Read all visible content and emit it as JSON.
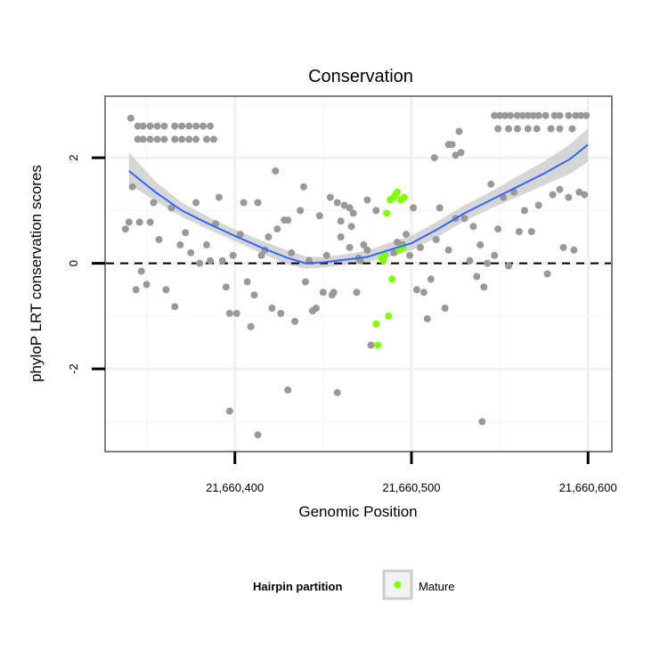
{
  "chart_data": {
    "type": "scatter",
    "title": "Conservation",
    "xlabel": "Genomic Position",
    "ylabel": "phyloP LRT conservation scores",
    "xlim": [
      21660327,
      21660613
    ],
    "ylim": [
      -3.55,
      3.15
    ],
    "x_ticks": [
      21660400,
      21660500,
      21660600
    ],
    "x_tick_labels": [
      "21,660,400",
      "21,660,500",
      "21,660,600"
    ],
    "y_ticks": [
      -2,
      0,
      2
    ],
    "y_tick_labels": [
      "-2",
      "0",
      "2"
    ],
    "grid": true,
    "reference_line": {
      "y": 0,
      "style": "dashed"
    },
    "legend": {
      "title": "Hairpin partition",
      "entries": [
        "Mature"
      ],
      "position": "bottom"
    },
    "colors": {
      "background_points": "#999999",
      "mature": "#7fff00",
      "smooth_line": "#3366ff",
      "confidence_band": "#c8c8c8"
    },
    "series": [
      {
        "role": "other",
        "points": [
          [
            21660341,
            2.75
          ],
          [
            21660345,
            2.6
          ],
          [
            21660348,
            2.6
          ],
          [
            21660352,
            2.6
          ],
          [
            21660356,
            2.6
          ],
          [
            21660360,
            2.6
          ],
          [
            21660366,
            2.6
          ],
          [
            21660370,
            2.6
          ],
          [
            21660374,
            2.6
          ],
          [
            21660378,
            2.6
          ],
          [
            21660382,
            2.6
          ],
          [
            21660386,
            2.6
          ],
          [
            21660345,
            2.35
          ],
          [
            21660348,
            2.35
          ],
          [
            21660352,
            2.35
          ],
          [
            21660356,
            2.35
          ],
          [
            21660360,
            2.35
          ],
          [
            21660366,
            2.35
          ],
          [
            21660370,
            2.35
          ],
          [
            21660374,
            2.35
          ],
          [
            21660378,
            2.35
          ],
          [
            21660384,
            2.35
          ],
          [
            21660388,
            2.35
          ],
          [
            21660342,
            1.45
          ],
          [
            21660338,
            0.65
          ],
          [
            21660340,
            0.78
          ],
          [
            21660346,
            0.78
          ],
          [
            21660350,
            -0.4
          ],
          [
            21660344,
            -0.5
          ],
          [
            21660347,
            -0.15
          ],
          [
            21660352,
            0.78
          ],
          [
            21660354,
            1.15
          ],
          [
            21660357,
            0.45
          ],
          [
            21660361,
            -0.5
          ],
          [
            21660364,
            1.05
          ],
          [
            21660366,
            -0.82
          ],
          [
            21660369,
            0.35
          ],
          [
            21660372,
            0.58
          ],
          [
            21660375,
            0.2
          ],
          [
            21660378,
            1.15
          ],
          [
            21660380,
            0.0
          ],
          [
            21660384,
            0.35
          ],
          [
            21660386,
            0.05
          ],
          [
            21660389,
            0.75
          ],
          [
            21660391,
            1.25
          ],
          [
            21660393,
            0.05
          ],
          [
            21660395,
            -0.45
          ],
          [
            21660397,
            -0.95
          ],
          [
            21660399,
            0.15
          ],
          [
            21660401,
            -0.95
          ],
          [
            21660403,
            0.55
          ],
          [
            21660405,
            1.15
          ],
          [
            21660407,
            -0.35
          ],
          [
            21660409,
            -1.2
          ],
          [
            21660411,
            -0.6
          ],
          [
            21660413,
            1.15
          ],
          [
            21660415,
            0.15
          ],
          [
            21660417,
            0.25
          ],
          [
            21660419,
            0.5
          ],
          [
            21660421,
            -0.85
          ],
          [
            21660423,
            1.75
          ],
          [
            21660424,
            0.65
          ],
          [
            21660426,
            -0.95
          ],
          [
            21660428,
            0.82
          ],
          [
            21660430,
            0.82
          ],
          [
            21660432,
            0.2
          ],
          [
            21660434,
            -1.1
          ],
          [
            21660437,
            1.0
          ],
          [
            21660439,
            1.45
          ],
          [
            21660440,
            -0.35
          ],
          [
            21660442,
            0.05
          ],
          [
            21660444,
            -0.9
          ],
          [
            21660446,
            -0.85
          ],
          [
            21660448,
            0.9
          ],
          [
            21660450,
            -0.55
          ],
          [
            21660452,
            0.15
          ],
          [
            21660454,
            1.25
          ],
          [
            21660456,
            -0.55
          ],
          [
            21660458,
            1.15
          ],
          [
            21660460,
            0.5
          ],
          [
            21660462,
            1.1
          ],
          [
            21660465,
            1.05
          ],
          [
            21660467,
            0.95
          ],
          [
            21660469,
            -0.55
          ],
          [
            21660471,
            0.05
          ],
          [
            21660473,
            0.35
          ],
          [
            21660475,
            1.2
          ],
          [
            21660477,
            -1.55
          ],
          [
            21660480,
            1.0
          ],
          [
            21660397,
            -2.8
          ],
          [
            21660413,
            -3.25
          ],
          [
            21660430,
            -2.4
          ],
          [
            21660458,
            -2.45
          ],
          [
            21660540,
            -3.0
          ],
          [
            21660503,
            -0.5
          ],
          [
            21660505,
            0.3
          ],
          [
            21660507,
            -0.55
          ],
          [
            21660509,
            -1.05
          ],
          [
            21660511,
            -0.3
          ],
          [
            21660514,
            0.45
          ],
          [
            21660516,
            1.05
          ],
          [
            21660513,
            2.0
          ],
          [
            21660519,
            -0.85
          ],
          [
            21660521,
            0.25
          ],
          [
            21660523,
            2.25
          ],
          [
            21660525,
            0.85
          ],
          [
            21660527,
            2.5
          ],
          [
            21660530,
            0.85
          ],
          [
            21660533,
            0.05
          ],
          [
            21660535,
            0.7
          ],
          [
            21660537,
            -0.25
          ],
          [
            21660539,
            0.35
          ],
          [
            21660541,
            -0.45
          ],
          [
            21660543,
            0.0
          ],
          [
            21660545,
            1.5
          ],
          [
            21660547,
            0.15
          ],
          [
            21660549,
            0.65
          ],
          [
            21660552,
            1.25
          ],
          [
            21660555,
            -0.05
          ],
          [
            21660558,
            1.35
          ],
          [
            21660561,
            0.6
          ],
          [
            21660564,
            1.0
          ],
          [
            21660568,
            0.6
          ],
          [
            21660572,
            1.1
          ],
          [
            21660577,
            -0.2
          ],
          [
            21660580,
            1.3
          ],
          [
            21660584,
            1.4
          ],
          [
            21660586,
            0.3
          ],
          [
            21660589,
            1.25
          ],
          [
            21660592,
            0.25
          ],
          [
            21660595,
            1.35
          ],
          [
            21660598,
            1.3
          ],
          [
            21660521,
            2.25
          ],
          [
            21660525,
            2.05
          ],
          [
            21660528,
            2.1
          ],
          [
            21660547,
            2.8
          ],
          [
            21660550,
            2.8
          ],
          [
            21660553,
            2.8
          ],
          [
            21660556,
            2.8
          ],
          [
            21660560,
            2.8
          ],
          [
            21660563,
            2.8
          ],
          [
            21660566,
            2.8
          ],
          [
            21660569,
            2.8
          ],
          [
            21660572,
            2.8
          ],
          [
            21660576,
            2.8
          ],
          [
            21660581,
            2.8
          ],
          [
            21660584,
            2.8
          ],
          [
            21660589,
            2.8
          ],
          [
            21660593,
            2.8
          ],
          [
            21660596,
            2.8
          ],
          [
            21660599,
            2.8
          ],
          [
            21660549,
            2.55
          ],
          [
            21660555,
            2.55
          ],
          [
            21660560,
            2.55
          ],
          [
            21660566,
            2.55
          ],
          [
            21660571,
            2.55
          ],
          [
            21660579,
            2.55
          ],
          [
            21660584,
            2.55
          ],
          [
            21660591,
            2.55
          ],
          [
            21660490,
            0.2
          ],
          [
            21660492,
            0.4
          ],
          [
            21660495,
            0.35
          ],
          [
            21660497,
            0.55
          ],
          [
            21660499,
            0.15
          ],
          [
            21660501,
            1.05
          ],
          [
            21660460,
            0.8
          ],
          [
            21660465,
            0.3
          ],
          [
            21660470,
            0.1
          ],
          [
            21660475,
            0.25
          ],
          [
            21660455,
            -0.6
          ],
          [
            21660466,
            0.7
          ]
        ]
      },
      {
        "role": "mature",
        "name": "Mature",
        "points": [
          [
            21660480,
            -1.15
          ],
          [
            21660481,
            -1.55
          ],
          [
            21660483,
            0.1
          ],
          [
            21660484,
            0.05
          ],
          [
            21660485,
            0.15
          ],
          [
            21660486,
            0.95
          ],
          [
            21660487,
            -1.0
          ],
          [
            21660488,
            1.2
          ],
          [
            21660489,
            -0.3
          ],
          [
            21660490,
            1.25
          ],
          [
            21660491,
            1.3
          ],
          [
            21660492,
            1.35
          ],
          [
            21660493,
            0.25
          ],
          [
            21660495,
            0.3
          ],
          [
            21660496,
            1.25
          ],
          [
            21660494,
            1.2
          ]
        ]
      }
    ],
    "smooth_fit": {
      "x": [
        21660340,
        21660355,
        21660370,
        21660385,
        21660400,
        21660415,
        21660430,
        21660440,
        21660450,
        21660460,
        21660475,
        21660490,
        21660500,
        21660515,
        21660530,
        21660545,
        21660560,
        21660575,
        21660590,
        21660600
      ],
      "y": [
        1.75,
        1.35,
        1.0,
        0.75,
        0.52,
        0.3,
        0.1,
        0.0,
        0.02,
        0.06,
        0.12,
        0.28,
        0.38,
        0.65,
        0.95,
        1.2,
        1.45,
        1.7,
        1.98,
        2.25
      ],
      "lower": [
        1.5,
        1.18,
        0.88,
        0.64,
        0.42,
        0.19,
        -0.03,
        -0.1,
        -0.08,
        -0.04,
        0.02,
        0.15,
        0.25,
        0.5,
        0.8,
        1.04,
        1.26,
        1.48,
        1.7,
        1.92
      ],
      "upper": [
        2.1,
        1.55,
        1.15,
        0.88,
        0.64,
        0.43,
        0.24,
        0.13,
        0.12,
        0.16,
        0.24,
        0.42,
        0.52,
        0.8,
        1.1,
        1.36,
        1.65,
        1.93,
        2.26,
        2.56
      ]
    }
  }
}
